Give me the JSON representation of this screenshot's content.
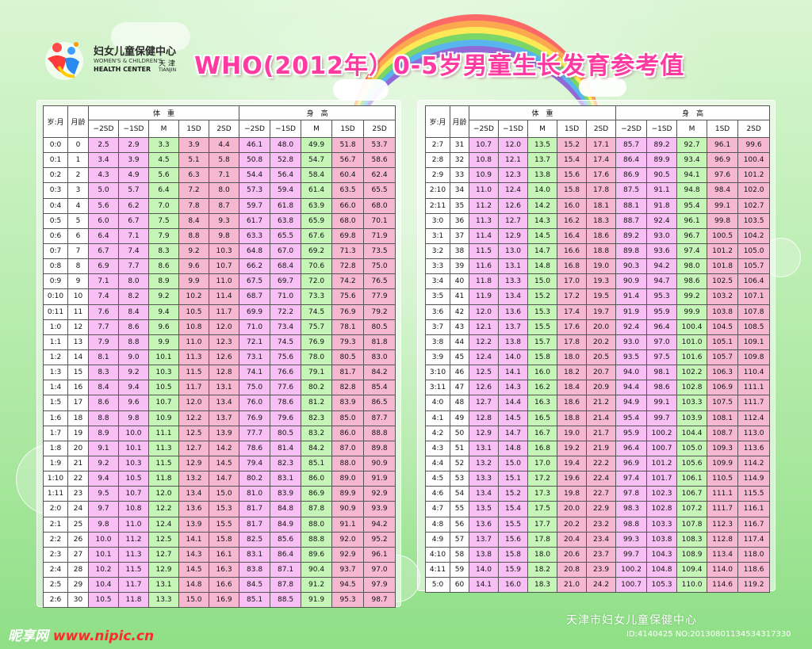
{
  "header": {
    "title": "WHO(2012年）0-5岁男童生长发育参考值",
    "logo": {
      "name_cn": "妇女儿童保健中心",
      "name_en1": "WOMEN'S & CHILDREN'S",
      "name_en2": "HEALTH CENTER",
      "city_cn": "天 津",
      "city_en": "TIANJIN"
    }
  },
  "table_headers": {
    "age": "岁:月",
    "month": "月龄",
    "weight": "体　重",
    "height": "身　高",
    "cols": [
      "−2SD",
      "−1SD",
      "M",
      "1SD",
      "2SD",
      "−2SD",
      "−1SD",
      "M",
      "1SD",
      "2SD"
    ]
  },
  "left_rows": [
    [
      "0:0",
      "0",
      "2.5",
      "2.9",
      "3.3",
      "3.9",
      "4.4",
      "46.1",
      "48.0",
      "49.9",
      "51.8",
      "53.7"
    ],
    [
      "0:1",
      "1",
      "3.4",
      "3.9",
      "4.5",
      "5.1",
      "5.8",
      "50.8",
      "52.8",
      "54.7",
      "56.7",
      "58.6"
    ],
    [
      "0:2",
      "2",
      "4.3",
      "4.9",
      "5.6",
      "6.3",
      "7.1",
      "54.4",
      "56.4",
      "58.4",
      "60.4",
      "62.4"
    ],
    [
      "0:3",
      "3",
      "5.0",
      "5.7",
      "6.4",
      "7.2",
      "8.0",
      "57.3",
      "59.4",
      "61.4",
      "63.5",
      "65.5"
    ],
    [
      "0:4",
      "4",
      "5.6",
      "6.2",
      "7.0",
      "7.8",
      "8.7",
      "59.7",
      "61.8",
      "63.9",
      "66.0",
      "68.0"
    ],
    [
      "0:5",
      "5",
      "6.0",
      "6.7",
      "7.5",
      "8.4",
      "9.3",
      "61.7",
      "63.8",
      "65.9",
      "68.0",
      "70.1"
    ],
    [
      "0:6",
      "6",
      "6.4",
      "7.1",
      "7.9",
      "8.8",
      "9.8",
      "63.3",
      "65.5",
      "67.6",
      "69.8",
      "71.9"
    ],
    [
      "0:7",
      "7",
      "6.7",
      "7.4",
      "8.3",
      "9.2",
      "10.3",
      "64.8",
      "67.0",
      "69.2",
      "71.3",
      "73.5"
    ],
    [
      "0:8",
      "8",
      "6.9",
      "7.7",
      "8.6",
      "9.6",
      "10.7",
      "66.2",
      "68.4",
      "70.6",
      "72.8",
      "75.0"
    ],
    [
      "0:9",
      "9",
      "7.1",
      "8.0",
      "8.9",
      "9.9",
      "11.0",
      "67.5",
      "69.7",
      "72.0",
      "74.2",
      "76.5"
    ],
    [
      "0:10",
      "10",
      "7.4",
      "8.2",
      "9.2",
      "10.2",
      "11.4",
      "68.7",
      "71.0",
      "73.3",
      "75.6",
      "77.9"
    ],
    [
      "0:11",
      "11",
      "7.6",
      "8.4",
      "9.4",
      "10.5",
      "11.7",
      "69.9",
      "72.2",
      "74.5",
      "76.9",
      "79.2"
    ],
    [
      "1:0",
      "12",
      "7.7",
      "8.6",
      "9.6",
      "10.8",
      "12.0",
      "71.0",
      "73.4",
      "75.7",
      "78.1",
      "80.5"
    ],
    [
      "1:1",
      "13",
      "7.9",
      "8.8",
      "9.9",
      "11.0",
      "12.3",
      "72.1",
      "74.5",
      "76.9",
      "79.3",
      "81.8"
    ],
    [
      "1:2",
      "14",
      "8.1",
      "9.0",
      "10.1",
      "11.3",
      "12.6",
      "73.1",
      "75.6",
      "78.0",
      "80.5",
      "83.0"
    ],
    [
      "1:3",
      "15",
      "8.3",
      "9.2",
      "10.3",
      "11.5",
      "12.8",
      "74.1",
      "76.6",
      "79.1",
      "81.7",
      "84.2"
    ],
    [
      "1:4",
      "16",
      "8.4",
      "9.4",
      "10.5",
      "11.7",
      "13.1",
      "75.0",
      "77.6",
      "80.2",
      "82.8",
      "85.4"
    ],
    [
      "1:5",
      "17",
      "8.6",
      "9.6",
      "10.7",
      "12.0",
      "13.4",
      "76.0",
      "78.6",
      "81.2",
      "83.9",
      "86.5"
    ],
    [
      "1:6",
      "18",
      "8.8",
      "9.8",
      "10.9",
      "12.2",
      "13.7",
      "76.9",
      "79.6",
      "82.3",
      "85.0",
      "87.7"
    ],
    [
      "1:7",
      "19",
      "8.9",
      "10.0",
      "11.1",
      "12.5",
      "13.9",
      "77.7",
      "80.5",
      "83.2",
      "86.0",
      "88.8"
    ],
    [
      "1:8",
      "20",
      "9.1",
      "10.1",
      "11.3",
      "12.7",
      "14.2",
      "78.6",
      "81.4",
      "84.2",
      "87.0",
      "89.8"
    ],
    [
      "1:9",
      "21",
      "9.2",
      "10.3",
      "11.5",
      "12.9",
      "14.5",
      "79.4",
      "82.3",
      "85.1",
      "88.0",
      "90.9"
    ],
    [
      "1:10",
      "22",
      "9.4",
      "10.5",
      "11.8",
      "13.2",
      "14.7",
      "80.2",
      "83.1",
      "86.0",
      "89.0",
      "91.9"
    ],
    [
      "1:11",
      "23",
      "9.5",
      "10.7",
      "12.0",
      "13.4",
      "15.0",
      "81.0",
      "83.9",
      "86.9",
      "89.9",
      "92.9"
    ],
    [
      "2:0",
      "24",
      "9.7",
      "10.8",
      "12.2",
      "13.6",
      "15.3",
      "81.7",
      "84.8",
      "87.8",
      "90.9",
      "93.9"
    ],
    [
      "2:1",
      "25",
      "9.8",
      "11.0",
      "12.4",
      "13.9",
      "15.5",
      "81.7",
      "84.9",
      "88.0",
      "91.1",
      "94.2"
    ],
    [
      "2:2",
      "26",
      "10.0",
      "11.2",
      "12.5",
      "14.1",
      "15.8",
      "82.5",
      "85.6",
      "88.8",
      "92.0",
      "95.2"
    ],
    [
      "2:3",
      "27",
      "10.1",
      "11.3",
      "12.7",
      "14.3",
      "16.1",
      "83.1",
      "86.4",
      "89.6",
      "92.9",
      "96.1"
    ],
    [
      "2:4",
      "28",
      "10.2",
      "11.5",
      "12.9",
      "14.5",
      "16.3",
      "83.8",
      "87.1",
      "90.4",
      "93.7",
      "97.0"
    ],
    [
      "2:5",
      "29",
      "10.4",
      "11.7",
      "13.1",
      "14.8",
      "16.6",
      "84.5",
      "87.8",
      "91.2",
      "94.5",
      "97.9"
    ],
    [
      "2:6",
      "30",
      "10.5",
      "11.8",
      "13.3",
      "15.0",
      "16.9",
      "85.1",
      "88.5",
      "91.9",
      "95.3",
      "98.7"
    ]
  ],
  "right_rows": [
    [
      "2:7",
      "31",
      "10.7",
      "12.0",
      "13.5",
      "15.2",
      "17.1",
      "85.7",
      "89.2",
      "92.7",
      "96.1",
      "99.6"
    ],
    [
      "2:8",
      "32",
      "10.8",
      "12.1",
      "13.7",
      "15.4",
      "17.4",
      "86.4",
      "89.9",
      "93.4",
      "96.9",
      "100.4"
    ],
    [
      "2:9",
      "33",
      "10.9",
      "12.3",
      "13.8",
      "15.6",
      "17.6",
      "86.9",
      "90.5",
      "94.1",
      "97.6",
      "101.2"
    ],
    [
      "2:10",
      "34",
      "11.0",
      "12.4",
      "14.0",
      "15.8",
      "17.8",
      "87.5",
      "91.1",
      "94.8",
      "98.4",
      "102.0"
    ],
    [
      "2:11",
      "35",
      "11.2",
      "12.6",
      "14.2",
      "16.0",
      "18.1",
      "88.1",
      "91.8",
      "95.4",
      "99.1",
      "102.7"
    ],
    [
      "3:0",
      "36",
      "11.3",
      "12.7",
      "14.3",
      "16.2",
      "18.3",
      "88.7",
      "92.4",
      "96.1",
      "99.8",
      "103.5"
    ],
    [
      "3:1",
      "37",
      "11.4",
      "12.9",
      "14.5",
      "16.4",
      "18.6",
      "89.2",
      "93.0",
      "96.7",
      "100.5",
      "104.2"
    ],
    [
      "3:2",
      "38",
      "11.5",
      "13.0",
      "14.7",
      "16.6",
      "18.8",
      "89.8",
      "93.6",
      "97.4",
      "101.2",
      "105.0"
    ],
    [
      "3:3",
      "39",
      "11.6",
      "13.1",
      "14.8",
      "16.8",
      "19.0",
      "90.3",
      "94.2",
      "98.0",
      "101.8",
      "105.7"
    ],
    [
      "3:4",
      "40",
      "11.8",
      "13.3",
      "15.0",
      "17.0",
      "19.3",
      "90.9",
      "94.7",
      "98.6",
      "102.5",
      "106.4"
    ],
    [
      "3:5",
      "41",
      "11.9",
      "13.4",
      "15.2",
      "17.2",
      "19.5",
      "91.4",
      "95.3",
      "99.2",
      "103.2",
      "107.1"
    ],
    [
      "3:6",
      "42",
      "12.0",
      "13.6",
      "15.3",
      "17.4",
      "19.7",
      "91.9",
      "95.9",
      "99.9",
      "103.8",
      "107.8"
    ],
    [
      "3:7",
      "43",
      "12.1",
      "13.7",
      "15.5",
      "17.6",
      "20.0",
      "92.4",
      "96.4",
      "100.4",
      "104.5",
      "108.5"
    ],
    [
      "3:8",
      "44",
      "12.2",
      "13.8",
      "15.7",
      "17.8",
      "20.2",
      "93.0",
      "97.0",
      "101.0",
      "105.1",
      "109.1"
    ],
    [
      "3:9",
      "45",
      "12.4",
      "14.0",
      "15.8",
      "18.0",
      "20.5",
      "93.5",
      "97.5",
      "101.6",
      "105.7",
      "109.8"
    ],
    [
      "3:10",
      "46",
      "12.5",
      "14.1",
      "16.0",
      "18.2",
      "20.7",
      "94.0",
      "98.1",
      "102.2",
      "106.3",
      "110.4"
    ],
    [
      "3:11",
      "47",
      "12.6",
      "14.3",
      "16.2",
      "18.4",
      "20.9",
      "94.4",
      "98.6",
      "102.8",
      "106.9",
      "111.1"
    ],
    [
      "4:0",
      "48",
      "12.7",
      "14.4",
      "16.3",
      "18.6",
      "21.2",
      "94.9",
      "99.1",
      "103.3",
      "107.5",
      "111.7"
    ],
    [
      "4:1",
      "49",
      "12.8",
      "14.5",
      "16.5",
      "18.8",
      "21.4",
      "95.4",
      "99.7",
      "103.9",
      "108.1",
      "112.4"
    ],
    [
      "4:2",
      "50",
      "12.9",
      "14.7",
      "16.7",
      "19.0",
      "21.7",
      "95.9",
      "100.2",
      "104.4",
      "108.7",
      "113.0"
    ],
    [
      "4:3",
      "51",
      "13.1",
      "14.8",
      "16.8",
      "19.2",
      "21.9",
      "96.4",
      "100.7",
      "105.0",
      "109.3",
      "113.6"
    ],
    [
      "4:4",
      "52",
      "13.2",
      "15.0",
      "17.0",
      "19.4",
      "22.2",
      "96.9",
      "101.2",
      "105.6",
      "109.9",
      "114.2"
    ],
    [
      "4:5",
      "53",
      "13.3",
      "15.1",
      "17.2",
      "19.6",
      "22.4",
      "97.4",
      "101.7",
      "106.1",
      "110.5",
      "114.9"
    ],
    [
      "4:6",
      "54",
      "13.4",
      "15.2",
      "17.3",
      "19.8",
      "22.7",
      "97.8",
      "102.3",
      "106.7",
      "111.1",
      "115.5"
    ],
    [
      "4:7",
      "55",
      "13.5",
      "15.4",
      "17.5",
      "20.0",
      "22.9",
      "98.3",
      "102.8",
      "107.2",
      "111.7",
      "116.1"
    ],
    [
      "4:8",
      "56",
      "13.6",
      "15.5",
      "17.7",
      "20.2",
      "23.2",
      "98.8",
      "103.3",
      "107.8",
      "112.3",
      "116.7"
    ],
    [
      "4:9",
      "57",
      "13.7",
      "15.6",
      "17.8",
      "20.4",
      "23.4",
      "99.3",
      "103.8",
      "108.3",
      "112.8",
      "117.4"
    ],
    [
      "4:10",
      "58",
      "13.8",
      "15.8",
      "18.0",
      "20.6",
      "23.7",
      "99.7",
      "104.3",
      "108.9",
      "113.4",
      "118.0"
    ],
    [
      "4:11",
      "59",
      "14.0",
      "15.9",
      "18.2",
      "20.8",
      "23.9",
      "100.2",
      "104.8",
      "109.4",
      "114.0",
      "118.6"
    ],
    [
      "5:0",
      "60",
      "14.1",
      "16.0",
      "18.3",
      "21.0",
      "24.2",
      "100.7",
      "105.3",
      "110.0",
      "114.6",
      "119.2"
    ]
  ],
  "footer": {
    "org": "天津市妇女儿童保健中心",
    "id_text": "ID:4140425 NO:20130801134534317330",
    "watermark_brand": "昵享网",
    "watermark_url": "www.nipic.cn"
  },
  "colors": {
    "pink_cell": "#f7bff3",
    "green_cell": "#c6f5b8",
    "rose_cell": "#f6b8d0",
    "title": "#ff3aa0",
    "background": "#bdeeb4"
  }
}
